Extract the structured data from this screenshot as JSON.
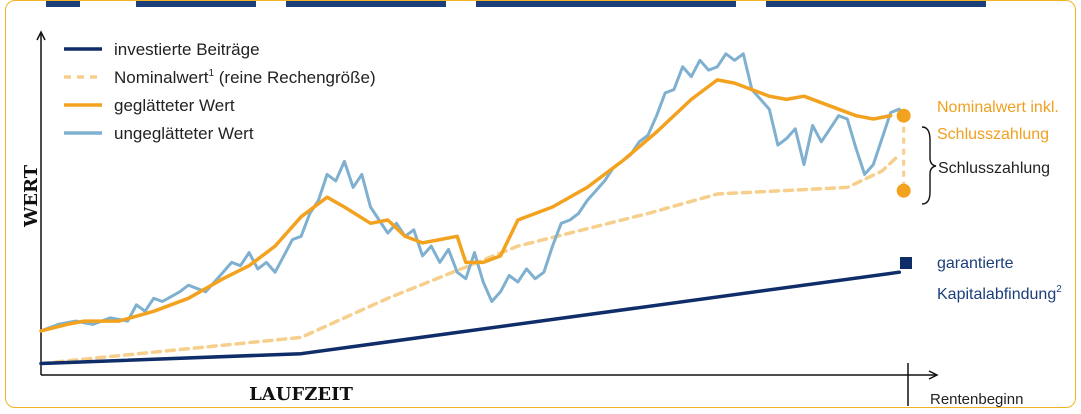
{
  "chart_data": {
    "type": "line",
    "title": "",
    "xlabel": "LAUFZEIT",
    "ylabel": "WERT",
    "end_label": "Rentenbeginn",
    "grid": false,
    "legend_position": "top-left",
    "colors": {
      "investierte": "#0f2d69",
      "nominal": "#f6cf8c",
      "geglaettet": "#f3a21f",
      "ungeglaettet": "#7fb0cf",
      "frame": "#f0b323"
    },
    "series": [
      {
        "name": "investierte Beiträge",
        "key": "investierte",
        "style": "solid",
        "points": [
          [
            0,
            2
          ],
          [
            30,
            5
          ],
          [
            99,
            30
          ]
        ]
      },
      {
        "name": "Nominalwert",
        "name_sup": "1",
        "name_suffix": " (reine Rechengröße)",
        "key": "nominal",
        "style": "dashed",
        "points": [
          [
            0,
            2
          ],
          [
            30,
            10
          ],
          [
            40,
            22
          ],
          [
            55,
            38
          ],
          [
            70,
            48
          ],
          [
            78,
            54
          ],
          [
            93,
            56
          ],
          [
            97,
            61
          ],
          [
            99,
            66
          ]
        ]
      },
      {
        "name": "geglätteter Wert",
        "key": "geglaettet",
        "style": "solid",
        "points": [
          [
            0,
            12
          ],
          [
            3,
            14
          ],
          [
            5,
            15
          ],
          [
            9,
            15
          ],
          [
            13,
            18
          ],
          [
            17,
            22
          ],
          [
            21,
            28
          ],
          [
            24,
            32
          ],
          [
            27,
            38
          ],
          [
            30,
            47
          ],
          [
            33,
            53
          ],
          [
            35,
            50
          ],
          [
            38,
            45
          ],
          [
            40,
            46
          ],
          [
            42,
            41
          ],
          [
            44,
            39
          ],
          [
            46,
            40
          ],
          [
            48,
            41
          ],
          [
            49,
            33
          ],
          [
            51,
            33
          ],
          [
            53,
            35
          ],
          [
            55,
            46
          ],
          [
            59,
            50
          ],
          [
            63,
            56
          ],
          [
            67,
            64
          ],
          [
            71,
            73
          ],
          [
            75,
            83
          ],
          [
            78,
            89
          ],
          [
            80,
            88
          ],
          [
            82,
            86
          ],
          [
            84,
            84
          ],
          [
            86,
            83
          ],
          [
            88,
            84
          ],
          [
            90,
            82
          ],
          [
            92,
            80
          ],
          [
            94,
            78
          ],
          [
            96,
            77
          ],
          [
            98,
            78
          ]
        ]
      },
      {
        "name": "ungeglätteter Wert",
        "key": "ungeglaettet",
        "style": "solid",
        "points": [
          [
            0,
            12
          ],
          [
            2,
            14
          ],
          [
            4,
            15
          ],
          [
            6,
            14
          ],
          [
            8,
            16
          ],
          [
            10,
            15
          ],
          [
            11,
            20
          ],
          [
            12,
            18
          ],
          [
            13,
            22
          ],
          [
            14,
            21
          ],
          [
            16,
            24
          ],
          [
            17,
            26
          ],
          [
            19,
            24
          ],
          [
            20,
            27
          ],
          [
            21,
            30
          ],
          [
            22,
            33
          ],
          [
            23,
            32
          ],
          [
            24,
            36
          ],
          [
            25,
            31
          ],
          [
            26,
            33
          ],
          [
            27,
            30
          ],
          [
            28,
            35
          ],
          [
            29,
            40
          ],
          [
            30,
            41
          ],
          [
            31,
            48
          ],
          [
            32,
            52
          ],
          [
            33,
            60
          ],
          [
            34,
            58
          ],
          [
            35,
            64
          ],
          [
            36,
            56
          ],
          [
            37,
            60
          ],
          [
            38,
            50
          ],
          [
            39,
            46
          ],
          [
            40,
            42
          ],
          [
            41,
            45
          ],
          [
            42,
            41
          ],
          [
            43,
            43
          ],
          [
            44,
            35
          ],
          [
            45,
            38
          ],
          [
            46,
            33
          ],
          [
            47,
            37
          ],
          [
            48,
            30
          ],
          [
            49,
            28
          ],
          [
            50,
            36
          ],
          [
            51,
            27
          ],
          [
            52,
            21
          ],
          [
            53,
            24
          ],
          [
            54,
            29
          ],
          [
            55,
            27
          ],
          [
            56,
            31
          ],
          [
            57,
            28
          ],
          [
            58,
            30
          ],
          [
            59,
            38
          ],
          [
            60,
            45
          ],
          [
            61,
            46
          ],
          [
            62,
            48
          ],
          [
            63,
            52
          ],
          [
            64,
            55
          ],
          [
            65,
            58
          ],
          [
            66,
            62
          ],
          [
            67,
            64
          ],
          [
            68,
            66
          ],
          [
            69,
            70
          ],
          [
            70,
            72
          ],
          [
            71,
            78
          ],
          [
            72,
            85
          ],
          [
            73,
            86
          ],
          [
            74,
            93
          ],
          [
            75,
            90
          ],
          [
            76,
            95
          ],
          [
            77,
            92
          ],
          [
            78,
            93
          ],
          [
            79,
            97
          ],
          [
            80,
            95
          ],
          [
            81,
            97
          ],
          [
            82,
            86
          ],
          [
            83,
            83
          ],
          [
            84,
            80
          ],
          [
            85,
            69
          ],
          [
            86,
            71
          ],
          [
            87,
            74
          ],
          [
            88,
            63
          ],
          [
            89,
            75
          ],
          [
            90,
            70
          ],
          [
            91,
            74
          ],
          [
            92,
            78
          ],
          [
            93,
            77
          ],
          [
            94,
            68
          ],
          [
            95,
            60
          ],
          [
            96,
            63
          ],
          [
            97,
            71
          ],
          [
            98,
            79
          ],
          [
            99,
            80
          ]
        ]
      }
    ],
    "annotations": {
      "nominal_final_line1": "Nominalwert inkl.",
      "nominal_final_line2": "Schlusszahlung",
      "bracket_label": "Schlusszahlung",
      "guaranteed_line1": "garantierte",
      "guaranteed_line2": "Kapitalabfindung",
      "guaranteed_sup": "2"
    },
    "final_points": {
      "upper": 78,
      "lower": 55,
      "guaranteed": 30
    }
  }
}
